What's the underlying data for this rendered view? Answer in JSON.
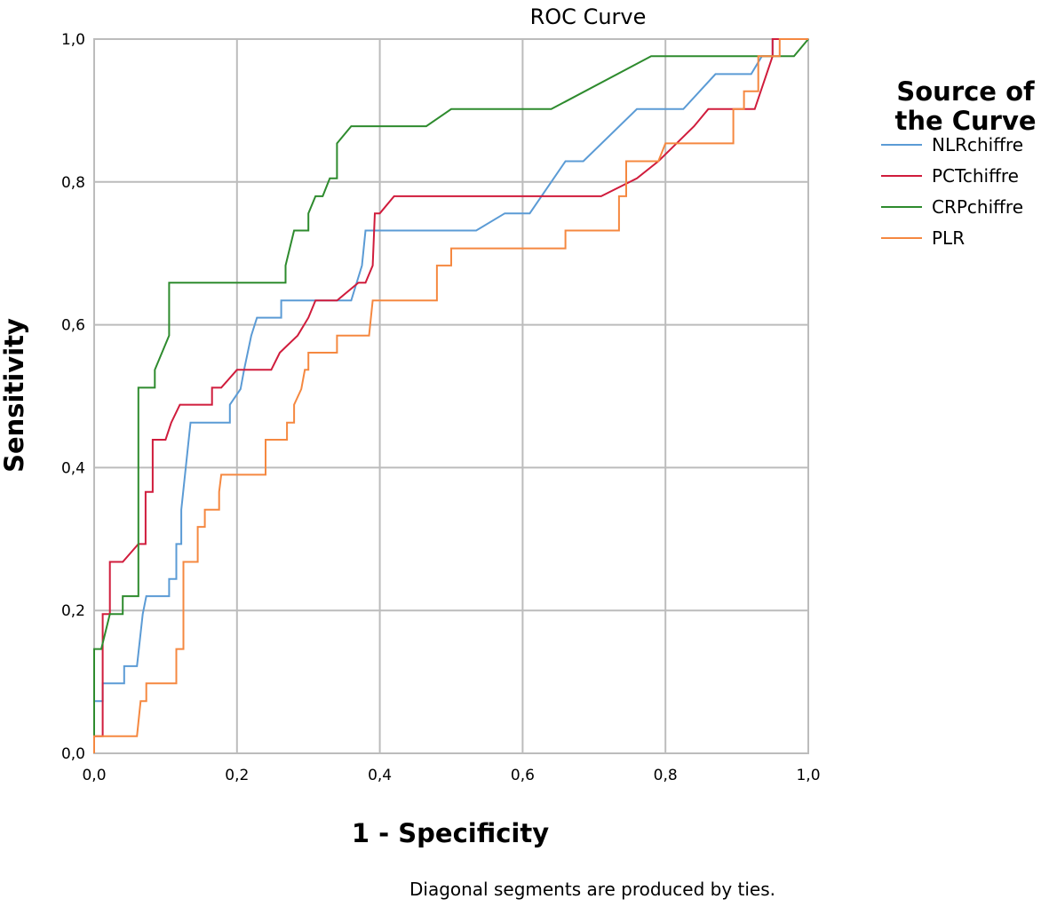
{
  "chart_data": {
    "type": "line",
    "title": "ROC Curve",
    "xlabel": "1 - Specificity",
    "ylabel": "Sensitivity",
    "xlim": [
      0,
      1
    ],
    "ylim": [
      0,
      1
    ],
    "x_ticks": [
      "0,0",
      "0,2",
      "0,4",
      "0,6",
      "0,8",
      "1,0"
    ],
    "y_ticks": [
      "0,0",
      "0,2",
      "0,4",
      "0,6",
      "0,8",
      "1,0"
    ],
    "grid": true,
    "legend": {
      "title_line1": "Source of",
      "title_line2": "the Curve",
      "placement": "right"
    },
    "footnote": "Diagonal segments are produced by ties.",
    "series": [
      {
        "name": "NLRchiffre",
        "color": "#5b9bd5",
        "points": [
          [
            0,
            0
          ],
          [
            0,
            0.073
          ],
          [
            0.012,
            0.073
          ],
          [
            0.012,
            0.098
          ],
          [
            0.042,
            0.098
          ],
          [
            0.042,
            0.122
          ],
          [
            0.06,
            0.122
          ],
          [
            0.068,
            0.195
          ],
          [
            0.073,
            0.22
          ],
          [
            0.105,
            0.22
          ],
          [
            0.105,
            0.244
          ],
          [
            0.115,
            0.244
          ],
          [
            0.115,
            0.293
          ],
          [
            0.122,
            0.293
          ],
          [
            0.122,
            0.341
          ],
          [
            0.135,
            0.463
          ],
          [
            0.19,
            0.463
          ],
          [
            0.19,
            0.488
          ],
          [
            0.205,
            0.51
          ],
          [
            0.21,
            0.537
          ],
          [
            0.22,
            0.585
          ],
          [
            0.228,
            0.61
          ],
          [
            0.262,
            0.61
          ],
          [
            0.262,
            0.634
          ],
          [
            0.36,
            0.634
          ],
          [
            0.375,
            0.683
          ],
          [
            0.38,
            0.732
          ],
          [
            0.535,
            0.732
          ],
          [
            0.575,
            0.756
          ],
          [
            0.61,
            0.756
          ],
          [
            0.66,
            0.829
          ],
          [
            0.685,
            0.829
          ],
          [
            0.76,
            0.902
          ],
          [
            0.825,
            0.902
          ],
          [
            0.87,
            0.951
          ],
          [
            0.92,
            0.951
          ],
          [
            0.935,
            0.976
          ],
          [
            0.95,
            0.976
          ],
          [
            0.95,
            1
          ],
          [
            1,
            1
          ]
        ]
      },
      {
        "name": "PCTchiffre",
        "color": "#d01c3c",
        "points": [
          [
            0,
            0
          ],
          [
            0,
            0.024
          ],
          [
            0.012,
            0.024
          ],
          [
            0.012,
            0.195
          ],
          [
            0.022,
            0.195
          ],
          [
            0.022,
            0.268
          ],
          [
            0.04,
            0.268
          ],
          [
            0.062,
            0.293
          ],
          [
            0.072,
            0.293
          ],
          [
            0.072,
            0.366
          ],
          [
            0.082,
            0.366
          ],
          [
            0.082,
            0.439
          ],
          [
            0.1,
            0.439
          ],
          [
            0.108,
            0.463
          ],
          [
            0.12,
            0.488
          ],
          [
            0.165,
            0.488
          ],
          [
            0.165,
            0.512
          ],
          [
            0.178,
            0.512
          ],
          [
            0.2,
            0.537
          ],
          [
            0.248,
            0.537
          ],
          [
            0.26,
            0.561
          ],
          [
            0.285,
            0.585
          ],
          [
            0.3,
            0.61
          ],
          [
            0.31,
            0.634
          ],
          [
            0.34,
            0.634
          ],
          [
            0.37,
            0.659
          ],
          [
            0.38,
            0.659
          ],
          [
            0.39,
            0.683
          ],
          [
            0.393,
            0.756
          ],
          [
            0.4,
            0.756
          ],
          [
            0.42,
            0.78
          ],
          [
            0.71,
            0.78
          ],
          [
            0.76,
            0.805
          ],
          [
            0.79,
            0.829
          ],
          [
            0.84,
            0.878
          ],
          [
            0.86,
            0.902
          ],
          [
            0.9,
            0.902
          ],
          [
            0.925,
            0.902
          ],
          [
            0.95,
            0.976
          ],
          [
            0.95,
            1
          ],
          [
            1,
            1
          ]
        ]
      },
      {
        "name": "CRPchiffre",
        "color": "#2e8b2e",
        "points": [
          [
            0,
            0
          ],
          [
            0,
            0.146
          ],
          [
            0.01,
            0.146
          ],
          [
            0.022,
            0.195
          ],
          [
            0.04,
            0.195
          ],
          [
            0.04,
            0.22
          ],
          [
            0.062,
            0.22
          ],
          [
            0.062,
            0.512
          ],
          [
            0.085,
            0.512
          ],
          [
            0.085,
            0.537
          ],
          [
            0.105,
            0.585
          ],
          [
            0.105,
            0.659
          ],
          [
            0.268,
            0.659
          ],
          [
            0.268,
            0.683
          ],
          [
            0.28,
            0.732
          ],
          [
            0.3,
            0.732
          ],
          [
            0.3,
            0.756
          ],
          [
            0.31,
            0.78
          ],
          [
            0.32,
            0.78
          ],
          [
            0.33,
            0.805
          ],
          [
            0.34,
            0.805
          ],
          [
            0.34,
            0.854
          ],
          [
            0.36,
            0.878
          ],
          [
            0.465,
            0.878
          ],
          [
            0.5,
            0.902
          ],
          [
            0.64,
            0.902
          ],
          [
            0.78,
            0.976
          ],
          [
            0.98,
            0.976
          ],
          [
            1,
            1
          ]
        ]
      },
      {
        "name": "PLR",
        "color": "#f58840",
        "points": [
          [
            0,
            0
          ],
          [
            0,
            0.024
          ],
          [
            0.06,
            0.024
          ],
          [
            0.065,
            0.073
          ],
          [
            0.073,
            0.073
          ],
          [
            0.073,
            0.098
          ],
          [
            0.115,
            0.098
          ],
          [
            0.115,
            0.146
          ],
          [
            0.125,
            0.146
          ],
          [
            0.125,
            0.268
          ],
          [
            0.145,
            0.268
          ],
          [
            0.145,
            0.317
          ],
          [
            0.155,
            0.317
          ],
          [
            0.155,
            0.341
          ],
          [
            0.175,
            0.341
          ],
          [
            0.175,
            0.366
          ],
          [
            0.178,
            0.39
          ],
          [
            0.24,
            0.39
          ],
          [
            0.24,
            0.439
          ],
          [
            0.27,
            0.439
          ],
          [
            0.27,
            0.463
          ],
          [
            0.28,
            0.463
          ],
          [
            0.28,
            0.488
          ],
          [
            0.29,
            0.51
          ],
          [
            0.295,
            0.537
          ],
          [
            0.3,
            0.537
          ],
          [
            0.3,
            0.561
          ],
          [
            0.34,
            0.561
          ],
          [
            0.34,
            0.585
          ],
          [
            0.385,
            0.585
          ],
          [
            0.39,
            0.634
          ],
          [
            0.48,
            0.634
          ],
          [
            0.48,
            0.683
          ],
          [
            0.5,
            0.683
          ],
          [
            0.5,
            0.707
          ],
          [
            0.66,
            0.707
          ],
          [
            0.66,
            0.732
          ],
          [
            0.735,
            0.732
          ],
          [
            0.735,
            0.78
          ],
          [
            0.745,
            0.78
          ],
          [
            0.745,
            0.829
          ],
          [
            0.79,
            0.829
          ],
          [
            0.8,
            0.854
          ],
          [
            0.895,
            0.854
          ],
          [
            0.895,
            0.902
          ],
          [
            0.91,
            0.902
          ],
          [
            0.91,
            0.927
          ],
          [
            0.93,
            0.927
          ],
          [
            0.93,
            0.976
          ],
          [
            0.96,
            0.976
          ],
          [
            0.96,
            1
          ],
          [
            1,
            1
          ]
        ]
      }
    ]
  }
}
